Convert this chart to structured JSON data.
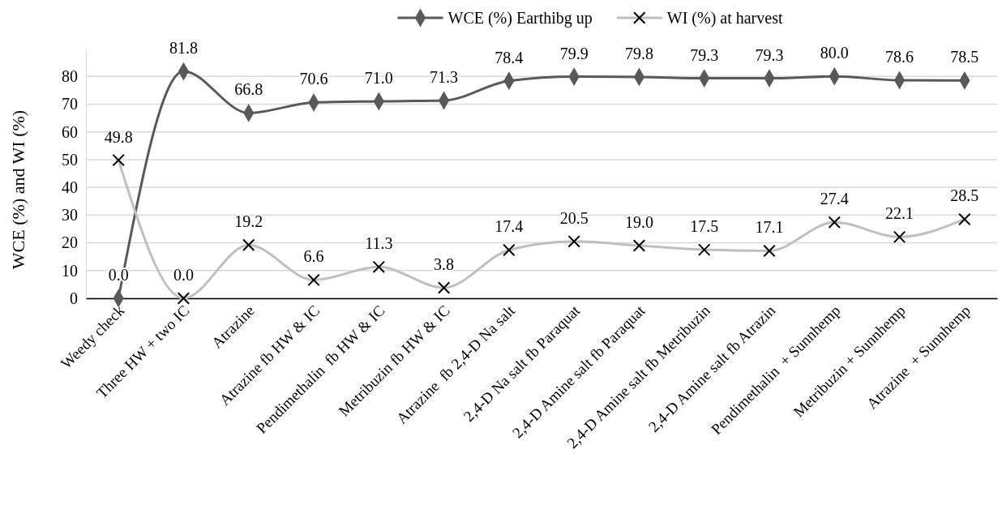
{
  "chart_data": {
    "type": "line",
    "ylabel": "WCE (%) and WI (%)",
    "categories": [
      "Weedy check",
      "Three HW + two IC",
      "Atrazine",
      "Atrazine fb HW & IC",
      "Pendimethalin  fb HW & IC",
      "Metribuzin fb HW & IC",
      "Atrazine  fb 2,4-D Na salt",
      "2,4-D Na salt fb Paraquat",
      "2,4-D Amine salt fb Paraquat",
      "2,4-D Amine salt fb Metribuzin",
      "2,4-D Amine salt fb Atrazin",
      "Pendimethalin  + Sunnhemp",
      "Metribuzin + Sunnhemp",
      "Atrazine  + Sunnhemp"
    ],
    "series": [
      {
        "name": "WCE (%) Earthibg up",
        "color": "#595959",
        "marker": "diamond",
        "values": [
          0.0,
          81.8,
          66.8,
          70.6,
          71.0,
          71.3,
          78.4,
          79.9,
          79.8,
          79.3,
          79.3,
          80.0,
          78.6,
          78.5
        ],
        "value_labels": [
          "0.0",
          "81.8",
          "66.8",
          "70.6",
          "71.0",
          "71.3",
          "78.4",
          "79.9",
          "79.8",
          "79.3",
          "79.3",
          "80.0",
          "78.6",
          "78.5"
        ]
      },
      {
        "name": "WI (%) at harvest",
        "color": "#bfbfbf",
        "marker": "cross",
        "values": [
          49.8,
          0.0,
          19.2,
          6.6,
          11.3,
          3.8,
          17.4,
          20.5,
          19.0,
          17.5,
          17.1,
          27.4,
          22.1,
          28.5
        ],
        "value_labels": [
          "49.8",
          "0.0",
          "19.2",
          "6.6",
          "11.3",
          "3.8",
          "17.4",
          "20.5",
          "19.0",
          "17.5",
          "17.1",
          "27.4",
          "22.1",
          "28.5"
        ]
      }
    ],
    "ylim": [
      0,
      90
    ],
    "yticks": [
      0,
      10,
      20,
      30,
      40,
      50,
      60,
      70,
      80
    ],
    "grid": "y",
    "legend": "top"
  }
}
